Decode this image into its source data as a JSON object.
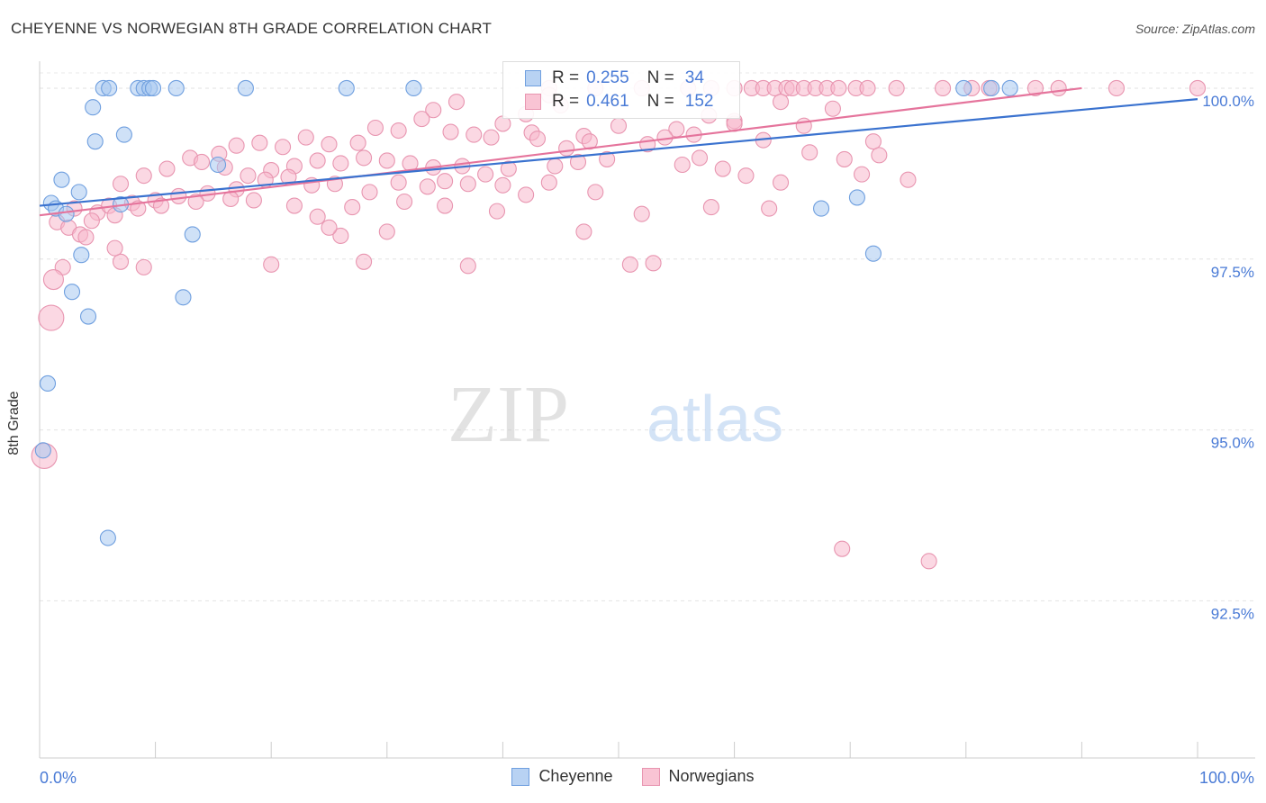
{
  "chart_data": {
    "type": "scatter",
    "title": "CHEYENNE VS NORWEGIAN 8TH GRADE CORRELATION CHART",
    "source": "Source: ZipAtlas.com",
    "ylabel": "8th Grade",
    "xlabel": "",
    "xlim": [
      0,
      100
    ],
    "ylim": [
      90.2,
      100.5
    ],
    "x_tick_labels": {
      "left": "0.0%",
      "right": "100.0%"
    },
    "y_ticks": [
      {
        "value": 100.0,
        "label": "100.0%"
      },
      {
        "value": 97.5,
        "label": "97.5%"
      },
      {
        "value": 95.0,
        "label": "95.0%"
      },
      {
        "value": 92.5,
        "label": "92.5%"
      }
    ],
    "watermark": {
      "part1": "ZIP",
      "part2": "atlas"
    },
    "legend": {
      "rows": [
        {
          "r_label": "R =",
          "r_value": "0.255",
          "n_label": "N =",
          "n_value": "34"
        },
        {
          "r_label": "R =",
          "r_value": "0.461",
          "n_label": "N =",
          "n_value": "152"
        }
      ]
    },
    "colors": {
      "cheyenne_fill": "#a8c8f0",
      "cheyenne_stroke": "#6f9fdf",
      "cheyenne_line": "#3a72cf",
      "norwegian_fill": "#f7b8cc",
      "norwegian_stroke": "#e895b0",
      "norwegian_line": "#e5749c",
      "tick_label": "#4a7bd6"
    },
    "series": [
      {
        "name": "Cheyenne",
        "trend": {
          "x": [
            0,
            100
          ],
          "y": [
            98.28,
            99.84
          ]
        },
        "points": [
          {
            "x": 5.5,
            "y": 100.0
          },
          {
            "x": 6.0,
            "y": 100.0
          },
          {
            "x": 8.5,
            "y": 100.0
          },
          {
            "x": 9.0,
            "y": 100.0
          },
          {
            "x": 9.5,
            "y": 100.0
          },
          {
            "x": 9.8,
            "y": 100.0
          },
          {
            "x": 11.8,
            "y": 100.0
          },
          {
            "x": 17.8,
            "y": 100.0
          },
          {
            "x": 26.5,
            "y": 100.0
          },
          {
            "x": 32.3,
            "y": 100.0
          },
          {
            "x": 79.8,
            "y": 100.0
          },
          {
            "x": 82.2,
            "y": 100.0
          },
          {
            "x": 83.8,
            "y": 100.0
          },
          {
            "x": 4.6,
            "y": 99.72
          },
          {
            "x": 7.3,
            "y": 99.32
          },
          {
            "x": 4.8,
            "y": 99.22
          },
          {
            "x": 1.9,
            "y": 98.66
          },
          {
            "x": 3.4,
            "y": 98.48
          },
          {
            "x": 1.0,
            "y": 98.32
          },
          {
            "x": 7.0,
            "y": 98.3
          },
          {
            "x": 1.4,
            "y": 98.24
          },
          {
            "x": 2.3,
            "y": 98.16
          },
          {
            "x": 15.4,
            "y": 98.88
          },
          {
            "x": 13.2,
            "y": 97.86
          },
          {
            "x": 3.6,
            "y": 97.56
          },
          {
            "x": 2.8,
            "y": 97.02
          },
          {
            "x": 12.4,
            "y": 96.94
          },
          {
            "x": 4.2,
            "y": 96.66
          },
          {
            "x": 0.7,
            "y": 95.68
          },
          {
            "x": 0.3,
            "y": 94.7
          },
          {
            "x": 5.9,
            "y": 93.42
          },
          {
            "x": 67.5,
            "y": 98.24
          },
          {
            "x": 70.6,
            "y": 98.4
          },
          {
            "x": 72.0,
            "y": 97.58
          }
        ]
      },
      {
        "name": "Norwegians",
        "trend": {
          "x": [
            0,
            90
          ],
          "y": [
            98.14,
            100.0
          ]
        },
        "points": [
          {
            "x": 44,
            "y": 100.0
          },
          {
            "x": 48,
            "y": 100.0
          },
          {
            "x": 52,
            "y": 100.0
          },
          {
            "x": 56,
            "y": 100.0
          },
          {
            "x": 58,
            "y": 100.0
          },
          {
            "x": 60,
            "y": 100.0
          },
          {
            "x": 61.5,
            "y": 100.0
          },
          {
            "x": 62.5,
            "y": 100.0
          },
          {
            "x": 63.5,
            "y": 100.0
          },
          {
            "x": 64.5,
            "y": 100.0
          },
          {
            "x": 65,
            "y": 100.0
          },
          {
            "x": 66,
            "y": 100.0
          },
          {
            "x": 67,
            "y": 100.0
          },
          {
            "x": 68,
            "y": 100.0
          },
          {
            "x": 69,
            "y": 100.0
          },
          {
            "x": 70.5,
            "y": 100.0
          },
          {
            "x": 71.5,
            "y": 100.0
          },
          {
            "x": 74,
            "y": 100.0
          },
          {
            "x": 78,
            "y": 100.0
          },
          {
            "x": 80.5,
            "y": 100.0
          },
          {
            "x": 82,
            "y": 100.0
          },
          {
            "x": 86,
            "y": 100.0
          },
          {
            "x": 88,
            "y": 100.0
          },
          {
            "x": 93,
            "y": 100.0
          },
          {
            "x": 100,
            "y": 100.0
          },
          {
            "x": 45,
            "y": 99.75
          },
          {
            "x": 42,
            "y": 99.62
          },
          {
            "x": 44,
            "y": 99.9
          },
          {
            "x": 40,
            "y": 99.48
          },
          {
            "x": 36,
            "y": 99.8
          },
          {
            "x": 34,
            "y": 99.68
          },
          {
            "x": 33,
            "y": 99.55
          },
          {
            "x": 35.5,
            "y": 99.36
          },
          {
            "x": 39,
            "y": 99.28
          },
          {
            "x": 42.5,
            "y": 99.35
          },
          {
            "x": 47,
            "y": 99.3
          },
          {
            "x": 50,
            "y": 99.45
          },
          {
            "x": 55,
            "y": 99.4
          },
          {
            "x": 60,
            "y": 99.52
          },
          {
            "x": 66,
            "y": 99.45
          },
          {
            "x": 68.5,
            "y": 99.7
          },
          {
            "x": 72,
            "y": 99.22
          },
          {
            "x": 52.5,
            "y": 99.18
          },
          {
            "x": 47.5,
            "y": 99.22
          },
          {
            "x": 45.5,
            "y": 99.12
          },
          {
            "x": 43,
            "y": 99.26
          },
          {
            "x": 37.5,
            "y": 99.32
          },
          {
            "x": 31,
            "y": 99.38
          },
          {
            "x": 29,
            "y": 99.42
          },
          {
            "x": 27.5,
            "y": 99.2
          },
          {
            "x": 25,
            "y": 99.18
          },
          {
            "x": 23,
            "y": 99.28
          },
          {
            "x": 21,
            "y": 99.14
          },
          {
            "x": 19,
            "y": 99.2
          },
          {
            "x": 17,
            "y": 99.16
          },
          {
            "x": 15.5,
            "y": 99.04
          },
          {
            "x": 13,
            "y": 98.98
          },
          {
            "x": 11,
            "y": 98.82
          },
          {
            "x": 9,
            "y": 98.72
          },
          {
            "x": 7,
            "y": 98.6
          },
          {
            "x": 14,
            "y": 98.92
          },
          {
            "x": 16,
            "y": 98.84
          },
          {
            "x": 18,
            "y": 98.72
          },
          {
            "x": 20,
            "y": 98.8
          },
          {
            "x": 22,
            "y": 98.86
          },
          {
            "x": 24,
            "y": 98.94
          },
          {
            "x": 26,
            "y": 98.9
          },
          {
            "x": 28,
            "y": 98.98
          },
          {
            "x": 30,
            "y": 98.94
          },
          {
            "x": 32,
            "y": 98.9
          },
          {
            "x": 34,
            "y": 98.84
          },
          {
            "x": 36.5,
            "y": 98.86
          },
          {
            "x": 38.5,
            "y": 98.74
          },
          {
            "x": 40.5,
            "y": 98.82
          },
          {
            "x": 44.5,
            "y": 98.86
          },
          {
            "x": 46.5,
            "y": 98.92
          },
          {
            "x": 49,
            "y": 98.96
          },
          {
            "x": 55.5,
            "y": 98.88
          },
          {
            "x": 57,
            "y": 98.98
          },
          {
            "x": 61,
            "y": 98.72
          },
          {
            "x": 64,
            "y": 98.62
          },
          {
            "x": 69.5,
            "y": 98.96
          },
          {
            "x": 71,
            "y": 98.74
          },
          {
            "x": 75,
            "y": 98.66
          },
          {
            "x": 3,
            "y": 98.24
          },
          {
            "x": 5,
            "y": 98.18
          },
          {
            "x": 6,
            "y": 98.28
          },
          {
            "x": 8,
            "y": 98.32
          },
          {
            "x": 10,
            "y": 98.36
          },
          {
            "x": 12,
            "y": 98.42
          },
          {
            "x": 14.5,
            "y": 98.46
          },
          {
            "x": 17,
            "y": 98.52
          },
          {
            "x": 19.5,
            "y": 98.66
          },
          {
            "x": 21.5,
            "y": 98.7
          },
          {
            "x": 23.5,
            "y": 98.58
          },
          {
            "x": 25.5,
            "y": 98.6
          },
          {
            "x": 28.5,
            "y": 98.48
          },
          {
            "x": 31,
            "y": 98.62
          },
          {
            "x": 33.5,
            "y": 98.56
          },
          {
            "x": 35,
            "y": 98.64
          },
          {
            "x": 37,
            "y": 98.6
          },
          {
            "x": 40,
            "y": 98.58
          },
          {
            "x": 42,
            "y": 98.44
          },
          {
            "x": 44,
            "y": 98.62
          },
          {
            "x": 1.5,
            "y": 98.04
          },
          {
            "x": 2.5,
            "y": 97.96
          },
          {
            "x": 3.5,
            "y": 97.86
          },
          {
            "x": 4.5,
            "y": 98.06
          },
          {
            "x": 6.5,
            "y": 98.14
          },
          {
            "x": 8.5,
            "y": 98.24
          },
          {
            "x": 10.5,
            "y": 98.28
          },
          {
            "x": 13.5,
            "y": 98.34
          },
          {
            "x": 16.5,
            "y": 98.38
          },
          {
            "x": 18.5,
            "y": 98.36
          },
          {
            "x": 22,
            "y": 98.28
          },
          {
            "x": 24,
            "y": 98.12
          },
          {
            "x": 27,
            "y": 98.26
          },
          {
            "x": 31.5,
            "y": 98.34
          },
          {
            "x": 35,
            "y": 98.28
          },
          {
            "x": 39.5,
            "y": 98.2
          },
          {
            "x": 52,
            "y": 98.16
          },
          {
            "x": 59,
            "y": 98.82
          },
          {
            "x": 63,
            "y": 98.24
          },
          {
            "x": 48,
            "y": 98.48
          },
          {
            "x": 58,
            "y": 98.26
          },
          {
            "x": 2,
            "y": 97.38
          },
          {
            "x": 7,
            "y": 97.46
          },
          {
            "x": 9,
            "y": 97.38
          },
          {
            "x": 20,
            "y": 97.42
          },
          {
            "x": 28,
            "y": 97.46
          },
          {
            "x": 37,
            "y": 97.4
          },
          {
            "x": 51,
            "y": 97.42
          },
          {
            "x": 26,
            "y": 97.84
          },
          {
            "x": 25,
            "y": 97.96
          },
          {
            "x": 30,
            "y": 97.9
          },
          {
            "x": 47,
            "y": 97.9
          },
          {
            "x": 53,
            "y": 97.44
          },
          {
            "x": 4,
            "y": 97.82
          },
          {
            "x": 6.5,
            "y": 97.66
          },
          {
            "x": 1.2,
            "y": 97.2
          },
          {
            "x": 1.0,
            "y": 96.64
          },
          {
            "x": 0.4,
            "y": 94.62
          },
          {
            "x": 69.3,
            "y": 93.26
          },
          {
            "x": 76.8,
            "y": 93.08
          },
          {
            "x": 72.5,
            "y": 99.02
          },
          {
            "x": 56.5,
            "y": 99.32
          },
          {
            "x": 54,
            "y": 99.28
          },
          {
            "x": 62.5,
            "y": 99.24
          },
          {
            "x": 66.5,
            "y": 99.06
          },
          {
            "x": 60,
            "y": 99.48
          },
          {
            "x": 57.8,
            "y": 99.6
          },
          {
            "x": 64,
            "y": 99.8
          }
        ]
      }
    ]
  }
}
